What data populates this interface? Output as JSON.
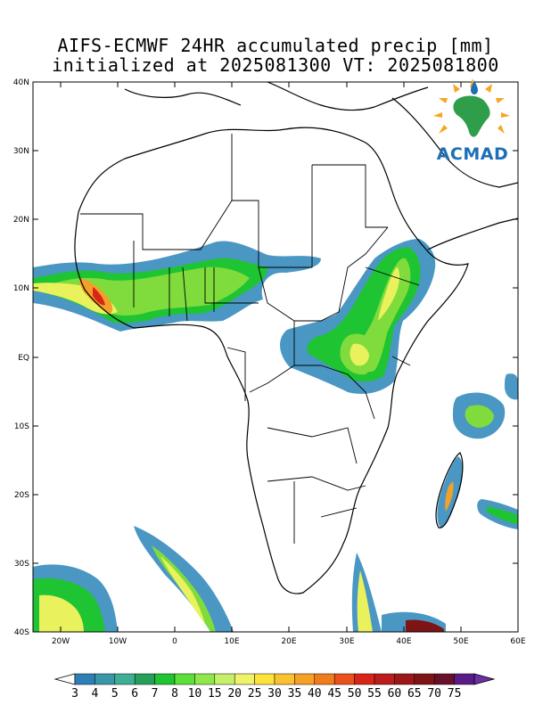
{
  "title": {
    "line1": "AIFS-ECMWF 24HR accumulated precip [mm]",
    "line2": "initialized at 2025081300 VT: 2025081800"
  },
  "axes": {
    "y_labels": [
      "40N",
      "30N",
      "20N",
      "10N",
      "EQ",
      "10S",
      "20S",
      "30S",
      "40S"
    ],
    "x_labels": [
      "20W",
      "10W",
      "0",
      "10E",
      "20E",
      "30E",
      "40E",
      "50E",
      "60E"
    ]
  },
  "logo": {
    "text": "ACMAD"
  },
  "colorbar": {
    "labels": [
      "3",
      "4",
      "5",
      "6",
      "7",
      "8",
      "10",
      "15",
      "20",
      "25",
      "30",
      "35",
      "40",
      "45",
      "50",
      "55",
      "60",
      "65",
      "70",
      "75"
    ],
    "colors": [
      "#2d7fb6",
      "#3a97a8",
      "#3fae96",
      "#25a05a",
      "#1ec431",
      "#5cdf37",
      "#8ee84c",
      "#c6f06a",
      "#eef36a",
      "#fde23c",
      "#fbc131",
      "#f6a025",
      "#f07d1c",
      "#e9521b",
      "#d92517",
      "#bb1c1c",
      "#9c1717",
      "#7e1413",
      "#66102a",
      "#5a1a88"
    ],
    "under_color": "#ffffff",
    "over_color": "#6a2fa0"
  },
  "map_colors": {
    "light": "#4a97c4",
    "medium": "#3fae96",
    "green": "#1ec431",
    "lightgreen": "#7fdc3c",
    "yellow": "#e9f25c",
    "orange": "#f3a02a",
    "red": "#d92517"
  }
}
